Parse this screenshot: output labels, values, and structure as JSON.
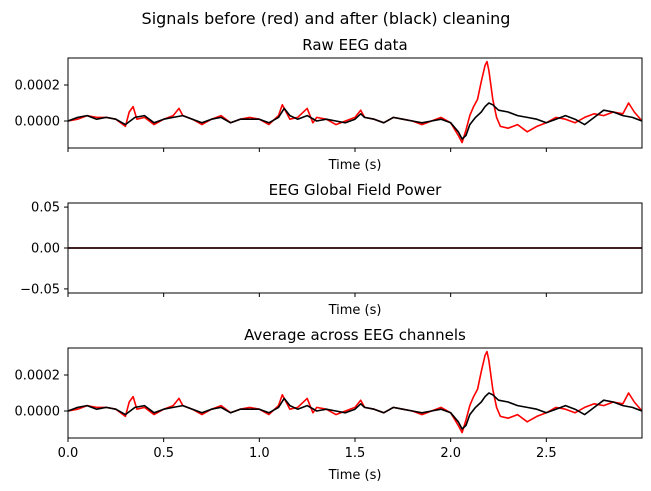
{
  "figure_title": "Signals before (red) and after (black) cleaning",
  "colors": {
    "before": "#ff0000",
    "after": "#000000",
    "axes": "#000000",
    "background": "#ffffff"
  },
  "legend_note": "red = before cleaning, black = after cleaning",
  "chart_data": [
    {
      "type": "line",
      "title": "Raw EEG data",
      "xlabel": "Time (s)",
      "ylabel": "",
      "xlim": [
        0,
        3.0
      ],
      "ylim": [
        -0.00015,
        0.00035
      ],
      "yticks": [
        0.0,
        0.0002
      ],
      "ytick_labels": [
        "0.0000",
        "0.0002"
      ],
      "xticks": [
        0,
        0.5,
        1.0,
        1.5,
        2.0,
        2.5
      ],
      "xtick_labels": [],
      "series": [
        {
          "name": "before",
          "color": "#ff0000",
          "x": [
            0,
            0.05,
            0.1,
            0.15,
            0.2,
            0.25,
            0.3,
            0.32,
            0.34,
            0.36,
            0.4,
            0.45,
            0.5,
            0.55,
            0.58,
            0.6,
            0.65,
            0.7,
            0.75,
            0.8,
            0.85,
            0.9,
            0.95,
            1.0,
            1.05,
            1.1,
            1.12,
            1.14,
            1.16,
            1.2,
            1.25,
            1.28,
            1.3,
            1.35,
            1.4,
            1.45,
            1.5,
            1.53,
            1.55,
            1.6,
            1.65,
            1.7,
            1.75,
            1.8,
            1.85,
            1.9,
            1.95,
            2.0,
            2.04,
            2.06,
            2.08,
            2.1,
            2.12,
            2.14,
            2.16,
            2.18,
            2.19,
            2.2,
            2.22,
            2.24,
            2.26,
            2.3,
            2.35,
            2.4,
            2.45,
            2.5,
            2.55,
            2.6,
            2.65,
            2.7,
            2.75,
            2.8,
            2.85,
            2.9,
            2.93,
            2.96,
            3.0
          ],
          "y": [
            0.0,
            1e-05,
            3e-05,
            2e-05,
            2e-05,
            1e-05,
            -3e-05,
            5e-05,
            8e-05,
            1e-05,
            2e-05,
            -2e-05,
            1e-05,
            3e-05,
            7e-05,
            3e-05,
            1e-05,
            -2e-05,
            1e-05,
            3e-05,
            -1e-05,
            1e-05,
            2e-05,
            1e-05,
            -2e-05,
            3e-05,
            9e-05,
            5e-05,
            1e-05,
            2e-05,
            7e-05,
            -1e-05,
            2e-05,
            1e-05,
            -2e-05,
            0.0,
            2e-05,
            6e-05,
            2e-05,
            1e-05,
            -1e-05,
            2e-05,
            1e-05,
            0.0,
            -2e-05,
            0.0,
            2e-05,
            -1e-05,
            -8e-05,
            -0.00012,
            -5e-05,
            3e-05,
            8e-05,
            0.00012,
            0.00022,
            0.00031,
            0.00033,
            0.00028,
            0.00012,
            2e-05,
            -3e-05,
            -4e-05,
            -2e-05,
            -6e-05,
            -3e-05,
            -1e-05,
            2e-05,
            1e-05,
            -1e-05,
            2e-05,
            4e-05,
            3e-05,
            5e-05,
            4e-05,
            0.0001,
            5e-05,
            0.0
          ]
        },
        {
          "name": "after",
          "color": "#000000",
          "x": [
            0,
            0.05,
            0.1,
            0.15,
            0.2,
            0.25,
            0.3,
            0.35,
            0.4,
            0.45,
            0.5,
            0.55,
            0.6,
            0.65,
            0.7,
            0.75,
            0.8,
            0.85,
            0.9,
            0.95,
            1.0,
            1.05,
            1.1,
            1.13,
            1.16,
            1.2,
            1.25,
            1.3,
            1.35,
            1.4,
            1.45,
            1.5,
            1.53,
            1.55,
            1.6,
            1.65,
            1.7,
            1.75,
            1.8,
            1.85,
            1.9,
            1.95,
            2.0,
            2.04,
            2.06,
            2.08,
            2.1,
            2.13,
            2.16,
            2.18,
            2.2,
            2.22,
            2.25,
            2.3,
            2.35,
            2.4,
            2.45,
            2.5,
            2.55,
            2.6,
            2.65,
            2.7,
            2.75,
            2.8,
            2.85,
            2.9,
            2.95,
            3.0
          ],
          "y": [
            0.0,
            2e-05,
            3e-05,
            1e-05,
            2e-05,
            1e-05,
            -2e-05,
            2e-05,
            3e-05,
            -1e-05,
            1e-05,
            2e-05,
            3e-05,
            1e-05,
            -1e-05,
            1e-05,
            2e-05,
            -1e-05,
            1e-05,
            1e-05,
            1e-05,
            -1e-05,
            2e-05,
            7e-05,
            3e-05,
            1e-05,
            3e-05,
            0.0,
            1e-05,
            0.0,
            -1e-05,
            1e-05,
            4e-05,
            2e-05,
            1e-05,
            -1e-05,
            2e-05,
            1e-05,
            0.0,
            -1e-05,
            0.0,
            1e-05,
            -1e-05,
            -6e-05,
            -0.0001,
            -8e-05,
            -2e-05,
            2e-05,
            5e-05,
            8e-05,
            0.0001,
            9e-05,
            6e-05,
            5e-05,
            3e-05,
            2e-05,
            1e-05,
            -1e-05,
            1e-05,
            3e-05,
            1e-05,
            -2e-05,
            2e-05,
            6e-05,
            5e-05,
            3e-05,
            2e-05,
            0.0
          ]
        }
      ]
    },
    {
      "type": "line",
      "title": "EEG Global Field Power",
      "xlabel": "Time (s)",
      "ylabel": "",
      "xlim": [
        0,
        3.0
      ],
      "ylim": [
        -0.055,
        0.055
      ],
      "yticks": [
        -0.05,
        0.0,
        0.05
      ],
      "ytick_labels": [
        "−0.05",
        "0.00",
        "0.05"
      ],
      "xticks": [
        0,
        0.5,
        1.0,
        1.5,
        2.0,
        2.5
      ],
      "xtick_labels": [],
      "series": [
        {
          "name": "before",
          "color": "#ff0000",
          "x": [
            0,
            3.0
          ],
          "y": [
            0,
            0
          ]
        },
        {
          "name": "after",
          "color": "#000000",
          "x": [
            0,
            3.0
          ],
          "y": [
            0,
            0
          ]
        }
      ]
    },
    {
      "type": "line",
      "title": "Average across EEG channels",
      "xlabel": "Time (s)",
      "ylabel": "",
      "xlim": [
        0,
        3.0
      ],
      "ylim": [
        -0.00015,
        0.00035
      ],
      "yticks": [
        0.0,
        0.0002
      ],
      "ytick_labels": [
        "0.0000",
        "0.0002"
      ],
      "xticks": [
        0,
        0.5,
        1.0,
        1.5,
        2.0,
        2.5
      ],
      "xtick_labels": [
        "0.0",
        "0.5",
        "1.0",
        "1.5",
        "2.0",
        "2.5"
      ],
      "series": [
        {
          "name": "before",
          "color": "#ff0000",
          "x": [
            0,
            0.05,
            0.1,
            0.15,
            0.2,
            0.25,
            0.3,
            0.32,
            0.34,
            0.36,
            0.4,
            0.45,
            0.5,
            0.55,
            0.58,
            0.6,
            0.65,
            0.7,
            0.75,
            0.8,
            0.85,
            0.9,
            0.95,
            1.0,
            1.05,
            1.1,
            1.12,
            1.14,
            1.16,
            1.2,
            1.25,
            1.28,
            1.3,
            1.35,
            1.4,
            1.45,
            1.5,
            1.53,
            1.55,
            1.6,
            1.65,
            1.7,
            1.75,
            1.8,
            1.85,
            1.9,
            1.95,
            2.0,
            2.04,
            2.06,
            2.08,
            2.1,
            2.12,
            2.14,
            2.16,
            2.18,
            2.19,
            2.2,
            2.22,
            2.24,
            2.26,
            2.3,
            2.35,
            2.4,
            2.45,
            2.5,
            2.55,
            2.6,
            2.65,
            2.7,
            2.75,
            2.8,
            2.85,
            2.9,
            2.93,
            2.96,
            3.0
          ],
          "y": [
            0.0,
            1e-05,
            3e-05,
            2e-05,
            2e-05,
            1e-05,
            -3e-05,
            5e-05,
            8e-05,
            1e-05,
            2e-05,
            -2e-05,
            1e-05,
            3e-05,
            7e-05,
            3e-05,
            1e-05,
            -2e-05,
            1e-05,
            3e-05,
            -1e-05,
            1e-05,
            2e-05,
            1e-05,
            -2e-05,
            3e-05,
            9e-05,
            5e-05,
            1e-05,
            2e-05,
            7e-05,
            -1e-05,
            2e-05,
            1e-05,
            -2e-05,
            0.0,
            2e-05,
            6e-05,
            2e-05,
            1e-05,
            -1e-05,
            2e-05,
            1e-05,
            0.0,
            -2e-05,
            0.0,
            2e-05,
            -1e-05,
            -8e-05,
            -0.00012,
            -5e-05,
            3e-05,
            8e-05,
            0.00012,
            0.00022,
            0.00031,
            0.00033,
            0.00028,
            0.00012,
            2e-05,
            -3e-05,
            -4e-05,
            -2e-05,
            -6e-05,
            -3e-05,
            -1e-05,
            2e-05,
            1e-05,
            -1e-05,
            2e-05,
            4e-05,
            3e-05,
            5e-05,
            4e-05,
            0.0001,
            5e-05,
            0.0
          ]
        },
        {
          "name": "after",
          "color": "#000000",
          "x": [
            0,
            0.05,
            0.1,
            0.15,
            0.2,
            0.25,
            0.3,
            0.35,
            0.4,
            0.45,
            0.5,
            0.55,
            0.6,
            0.65,
            0.7,
            0.75,
            0.8,
            0.85,
            0.9,
            0.95,
            1.0,
            1.05,
            1.1,
            1.13,
            1.16,
            1.2,
            1.25,
            1.3,
            1.35,
            1.4,
            1.45,
            1.5,
            1.53,
            1.55,
            1.6,
            1.65,
            1.7,
            1.75,
            1.8,
            1.85,
            1.9,
            1.95,
            2.0,
            2.04,
            2.06,
            2.08,
            2.1,
            2.13,
            2.16,
            2.18,
            2.2,
            2.22,
            2.25,
            2.3,
            2.35,
            2.4,
            2.45,
            2.5,
            2.55,
            2.6,
            2.65,
            2.7,
            2.75,
            2.8,
            2.85,
            2.9,
            2.95,
            3.0
          ],
          "y": [
            0.0,
            2e-05,
            3e-05,
            1e-05,
            2e-05,
            1e-05,
            -2e-05,
            2e-05,
            3e-05,
            -1e-05,
            1e-05,
            2e-05,
            3e-05,
            1e-05,
            -1e-05,
            1e-05,
            2e-05,
            -1e-05,
            1e-05,
            1e-05,
            1e-05,
            -1e-05,
            2e-05,
            7e-05,
            3e-05,
            1e-05,
            3e-05,
            0.0,
            1e-05,
            0.0,
            -1e-05,
            1e-05,
            4e-05,
            2e-05,
            1e-05,
            -1e-05,
            2e-05,
            1e-05,
            0.0,
            -1e-05,
            0.0,
            1e-05,
            -1e-05,
            -6e-05,
            -0.0001,
            -8e-05,
            -2e-05,
            2e-05,
            5e-05,
            8e-05,
            0.0001,
            9e-05,
            6e-05,
            5e-05,
            3e-05,
            2e-05,
            1e-05,
            -1e-05,
            1e-05,
            3e-05,
            1e-05,
            -2e-05,
            2e-05,
            6e-05,
            5e-05,
            3e-05,
            2e-05,
            0.0
          ]
        }
      ]
    }
  ]
}
